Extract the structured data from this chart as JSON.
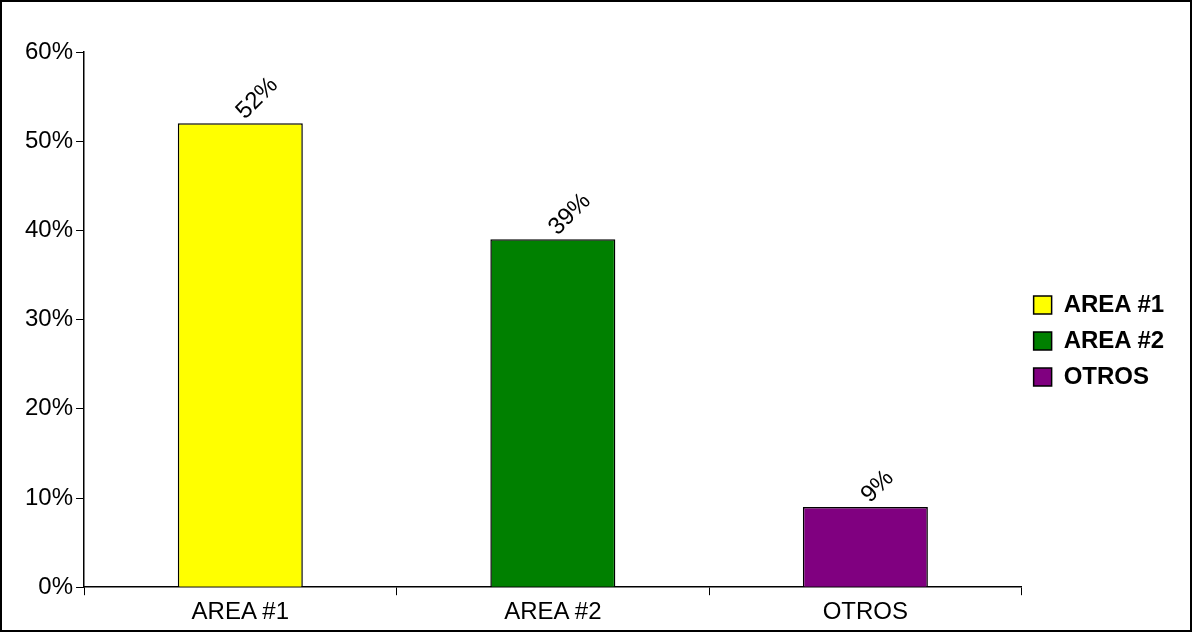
{
  "chart_data": {
    "type": "bar",
    "categories": [
      "AREA #1",
      "AREA #2",
      "OTROS"
    ],
    "series": [
      {
        "name": "AREA #1",
        "color": "#ffff00",
        "values": [
          52,
          null,
          null
        ],
        "value_labels": [
          "52%",
          null,
          null
        ]
      },
      {
        "name": "AREA #2",
        "color": "#008000",
        "values": [
          null,
          39,
          null
        ],
        "value_labels": [
          null,
          "39%",
          null
        ]
      },
      {
        "name": "OTROS",
        "color": "#800080",
        "values": [
          null,
          null,
          9
        ],
        "value_labels": [
          null,
          null,
          "9%"
        ]
      }
    ],
    "ylim": [
      0,
      60
    ],
    "yticks": [
      {
        "value": 0,
        "label": "0%"
      },
      {
        "value": 10,
        "label": "10%"
      },
      {
        "value": 20,
        "label": "20%"
      },
      {
        "value": 30,
        "label": "30%"
      },
      {
        "value": 40,
        "label": "40%"
      },
      {
        "value": 50,
        "label": "50%"
      },
      {
        "value": 60,
        "label": "60%"
      }
    ],
    "grid": false,
    "legend": "right"
  }
}
